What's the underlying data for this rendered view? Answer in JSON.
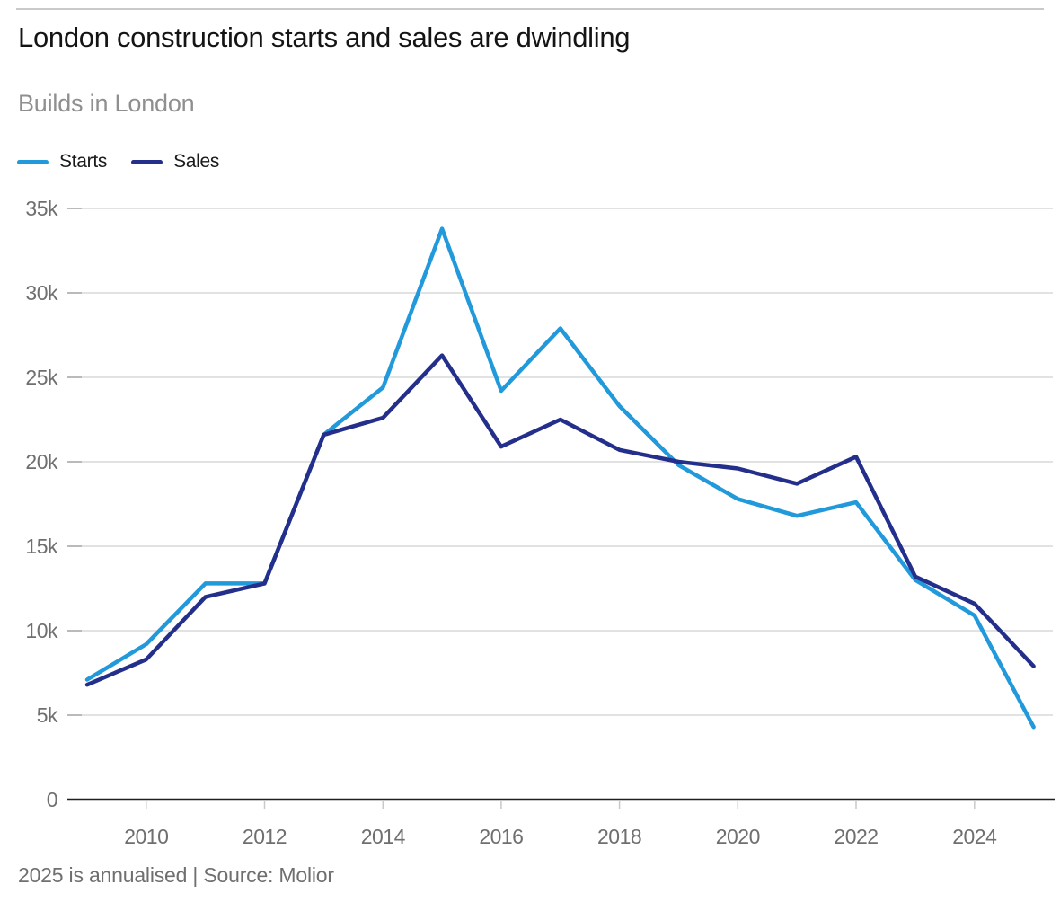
{
  "header": {
    "title": "London construction starts and sales are dwindling",
    "subtitle": "Builds in London"
  },
  "footer": {
    "note": "2025 is annualised | Source: Molior"
  },
  "colors": {
    "starts_line": "#2199da",
    "sales_line": "#232f8b",
    "gridline": "#d9d9d9",
    "gridline_tick": "#a9a9a9",
    "axis_line": "#1f1f1f",
    "axis_tick": "#c9c9c9",
    "tick_label": "#6f6f6f"
  },
  "chart_data": {
    "type": "line",
    "title": "London construction starts and sales are dwindling",
    "subtitle": "Builds in London",
    "note": "2025 is annualised | Source: Molior",
    "x": [
      2009,
      2010,
      2011,
      2012,
      2013,
      2014,
      2015,
      2016,
      2017,
      2018,
      2019,
      2020,
      2021,
      2022,
      2023,
      2024,
      2025
    ],
    "series": [
      {
        "name": "Starts",
        "color": "#2199da",
        "values": [
          7100,
          9200,
          12800,
          12800,
          21600,
          24400,
          33800,
          24200,
          27900,
          23300,
          19800,
          17800,
          16800,
          17600,
          13000,
          10900,
          4300
        ]
      },
      {
        "name": "Sales",
        "color": "#232f8b",
        "values": [
          6800,
          8300,
          12000,
          12800,
          21600,
          22600,
          26300,
          20900,
          22500,
          20700,
          20000,
          19600,
          18700,
          20300,
          13200,
          11600,
          7900
        ]
      }
    ],
    "xlabel": "",
    "ylabel": "",
    "ylim": [
      0,
      35000
    ],
    "yticks": [
      0,
      5000,
      10000,
      15000,
      20000,
      25000,
      30000,
      35000
    ],
    "ytick_labels": [
      "0",
      "5k",
      "10k",
      "15k",
      "20k",
      "25k",
      "30k",
      "35k"
    ],
    "xticks": [
      2010,
      2012,
      2014,
      2016,
      2018,
      2020,
      2022,
      2024
    ],
    "xtick_labels": [
      "2010",
      "2012",
      "2014",
      "2016",
      "2018",
      "2020",
      "2022",
      "2024"
    ],
    "grid": "horizontal",
    "legend_position": "top-left"
  }
}
